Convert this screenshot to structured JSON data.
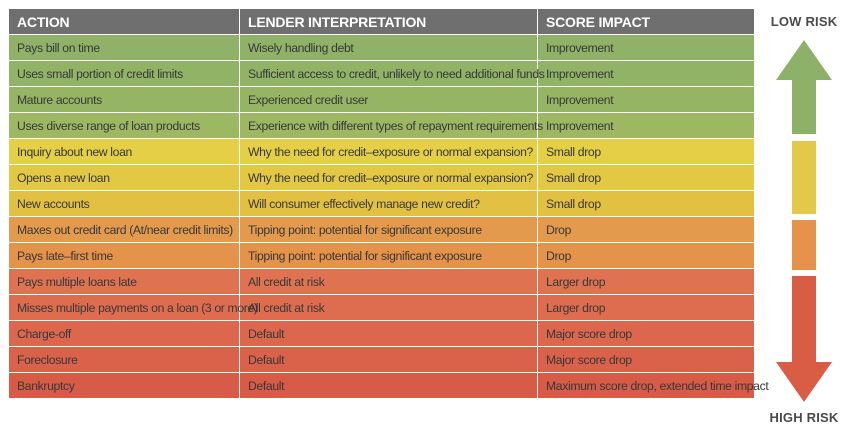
{
  "headers": {
    "action": "ACTION",
    "lender": "LENDER INTERPRETATION",
    "score": "SCORE IMPACT"
  },
  "rows": [
    {
      "action": "Pays bill on time",
      "lender": "Wisely handling debt",
      "score": "Improvement",
      "color": "#8fb268"
    },
    {
      "action": "Uses small portion of credit limits",
      "lender": "Sufficient access to credit, unlikely to need additional funds",
      "score": "Improvement",
      "color": "#91b366"
    },
    {
      "action": "Mature accounts",
      "lender": "Experienced credit user",
      "score": "Improvement",
      "color": "#96b564"
    },
    {
      "action": "Uses diverse range of loan products",
      "lender": "Experience with different types of repayment requirements",
      "score": "Improvement",
      "color": "#9db862"
    },
    {
      "action": "Inquiry about new loan",
      "lender": "Why the need for credit–exposure or normal expansion?",
      "score": "Small drop",
      "color": "#e4cf47"
    },
    {
      "action": "Opens a new loan",
      "lender": "Why the need for credit–exposure or normal expansion?",
      "score": "Small drop",
      "color": "#e3c844"
    },
    {
      "action": "New accounts",
      "lender": "Will consumer effectively manage new credit?",
      "score": "Small drop",
      "color": "#e2c142"
    },
    {
      "action": "Maxes out credit card (At/near credit limits)",
      "lender": "Tipping point: potential for significant exposure",
      "score": "Drop",
      "color": "#e49a4c"
    },
    {
      "action": "Pays late–first time",
      "lender": "Tipping point: potential for significant exposure",
      "score": "Drop",
      "color": "#e5924a"
    },
    {
      "action": "Pays multiple loans late",
      "lender": "All credit at risk",
      "score": "Larger drop",
      "color": "#df7351"
    },
    {
      "action": "Misses multiple payments on a loan (3 or more)",
      "lender": "All credit at risk",
      "score": "Larger drop",
      "color": "#de6d4f"
    },
    {
      "action": "Charge-off",
      "lender": "Default",
      "score": "Major score drop",
      "color": "#dc674c"
    },
    {
      "action": "Foreclosure",
      "lender": "Default",
      "score": "Major score drop",
      "color": "#da614a"
    },
    {
      "action": "Bankruptcy",
      "lender": "Default",
      "score": "Maximum score drop, extended time impact",
      "color": "#d85b47"
    }
  ],
  "header_color": "#6f6f70",
  "risk_scale": {
    "low_label": "LOW RISK",
    "high_label": "HIGH RISK",
    "colors": {
      "green": "#8db169",
      "yellow": "#e4c84a",
      "orange": "#e6924a",
      "red": "#d95c45"
    }
  }
}
